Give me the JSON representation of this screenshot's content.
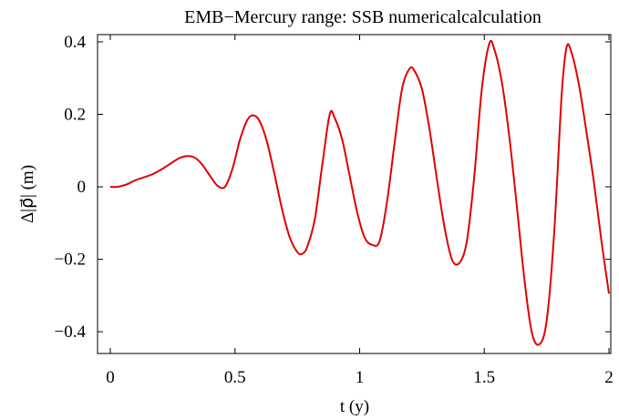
{
  "chart_data": {
    "type": "line",
    "title": "EMB−Mercury range: SSB numericalcalculation",
    "xlabel": "t (y)",
    "ylabel": "Δ|ρ⃗| (m)",
    "xlim": [
      0,
      2
    ],
    "ylim": [
      -0.46,
      0.42
    ],
    "x_ticks": [
      {
        "value": 0,
        "label": "0"
      },
      {
        "value": 0.5,
        "label": "0.5"
      },
      {
        "value": 1,
        "label": "1"
      },
      {
        "value": 1.5,
        "label": "1.5"
      },
      {
        "value": 2,
        "label": "2"
      }
    ],
    "y_ticks": [
      {
        "value": -0.4,
        "label": "−0.4"
      },
      {
        "value": -0.2,
        "label": "−0.2"
      },
      {
        "value": 0,
        "label": "0"
      },
      {
        "value": 0.2,
        "label": "0.2"
      },
      {
        "value": 0.4,
        "label": "0.4"
      }
    ],
    "grid": false,
    "series": [
      {
        "color": "#e00000",
        "points": [
          [
            0.0,
            0.0
          ],
          [
            0.03,
            0.0
          ],
          [
            0.07,
            0.008
          ],
          [
            0.1,
            0.018
          ],
          [
            0.13,
            0.025
          ],
          [
            0.17,
            0.035
          ],
          [
            0.21,
            0.05
          ],
          [
            0.25,
            0.068
          ],
          [
            0.28,
            0.08
          ],
          [
            0.31,
            0.085
          ],
          [
            0.34,
            0.08
          ],
          [
            0.37,
            0.06
          ],
          [
            0.4,
            0.03
          ],
          [
            0.43,
            0.003
          ],
          [
            0.46,
            0.0
          ],
          [
            0.49,
            0.05
          ],
          [
            0.52,
            0.13
          ],
          [
            0.55,
            0.185
          ],
          [
            0.575,
            0.197
          ],
          [
            0.6,
            0.18
          ],
          [
            0.63,
            0.12
          ],
          [
            0.66,
            0.03
          ],
          [
            0.69,
            -0.065
          ],
          [
            0.72,
            -0.14
          ],
          [
            0.75,
            -0.18
          ],
          [
            0.77,
            -0.185
          ],
          [
            0.79,
            -0.165
          ],
          [
            0.82,
            -0.09
          ],
          [
            0.85,
            0.06
          ],
          [
            0.88,
            0.2
          ],
          [
            0.9,
            0.19
          ],
          [
            0.93,
            0.13
          ],
          [
            0.96,
            0.03
          ],
          [
            0.99,
            -0.07
          ],
          [
            1.02,
            -0.14
          ],
          [
            1.05,
            -0.16
          ],
          [
            1.08,
            -0.15
          ],
          [
            1.11,
            -0.04
          ],
          [
            1.14,
            0.12
          ],
          [
            1.17,
            0.27
          ],
          [
            1.2,
            0.326
          ],
          [
            1.22,
            0.32
          ],
          [
            1.25,
            0.27
          ],
          [
            1.28,
            0.16
          ],
          [
            1.31,
            0.02
          ],
          [
            1.34,
            -0.11
          ],
          [
            1.37,
            -0.2
          ],
          [
            1.4,
            -0.21
          ],
          [
            1.43,
            -0.15
          ],
          [
            1.46,
            0.03
          ],
          [
            1.49,
            0.27
          ],
          [
            1.52,
            0.395
          ],
          [
            1.54,
            0.38
          ],
          [
            1.57,
            0.29
          ],
          [
            1.6,
            0.14
          ],
          [
            1.63,
            -0.05
          ],
          [
            1.66,
            -0.25
          ],
          [
            1.69,
            -0.4
          ],
          [
            1.72,
            -0.435
          ],
          [
            1.75,
            -0.37
          ],
          [
            1.78,
            -0.13
          ],
          [
            1.81,
            0.25
          ],
          [
            1.83,
            0.385
          ],
          [
            1.85,
            0.37
          ],
          [
            1.88,
            0.28
          ],
          [
            1.91,
            0.15
          ],
          [
            1.94,
            0.01
          ],
          [
            1.97,
            -0.15
          ],
          [
            2.0,
            -0.295
          ]
        ]
      }
    ]
  }
}
